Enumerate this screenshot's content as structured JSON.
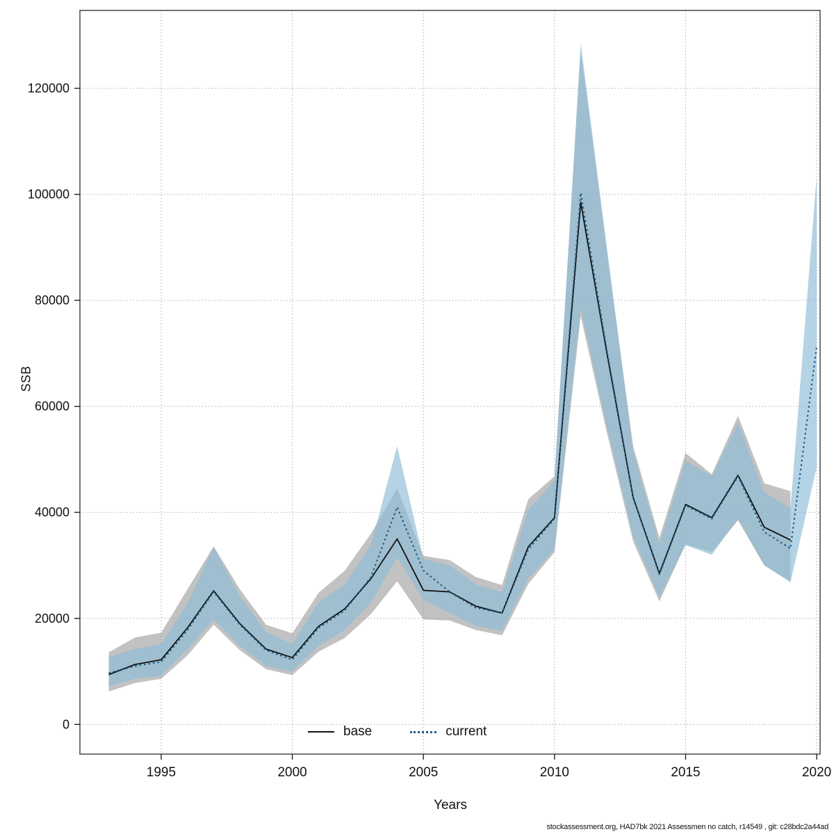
{
  "chart_data": {
    "type": "line",
    "title": "",
    "xlabel": "Years",
    "ylabel": "SSB",
    "xlim": [
      1991.9,
      2020.13
    ],
    "ylim": [
      -5600,
      134700
    ],
    "xticks": [
      1995,
      2000,
      2005,
      2010,
      2015,
      2020
    ],
    "yticks": [
      0,
      20000,
      40000,
      60000,
      80000,
      100000,
      120000
    ],
    "grid": true,
    "grid_color": "#a9a9c4",
    "legend_position": "bottom-center-inside",
    "legend": [
      "base",
      "current"
    ],
    "series": [
      {
        "name": "base",
        "color": "#111111",
        "line_style": "solid",
        "band_color": "#8f8f8f",
        "band_opacity": 0.55,
        "x": [
          1993,
          1994,
          1995,
          1996,
          1997,
          1998,
          1999,
          2000,
          2001,
          2002,
          2003,
          2004,
          2005,
          2006,
          2007,
          2008,
          2009,
          2010,
          2011,
          2012,
          2013,
          2014,
          2015,
          2016,
          2017,
          2018,
          2019
        ],
        "y": [
          9400,
          11300,
          12200,
          18200,
          25200,
          19000,
          14200,
          12600,
          18500,
          21800,
          27500,
          35000,
          25300,
          25000,
          22300,
          21000,
          33500,
          39000,
          98500,
          70000,
          42800,
          28500,
          41500,
          39000,
          47000,
          37200,
          34800
        ],
        "lower": [
          6200,
          7800,
          8600,
          13000,
          18800,
          14000,
          10400,
          9300,
          13700,
          16300,
          20800,
          27000,
          19800,
          19600,
          17800,
          16800,
          26500,
          32500,
          77000,
          55000,
          34500,
          23200,
          34000,
          32500,
          38500,
          30000,
          27000
        ],
        "upper": [
          13600,
          16400,
          17300,
          25500,
          33600,
          25500,
          18800,
          17200,
          24800,
          29000,
          36000,
          44500,
          31800,
          31000,
          27800,
          26300,
          42500,
          46800,
          127000,
          89000,
          52500,
          35200,
          51200,
          47200,
          58200,
          45500,
          44000
        ]
      },
      {
        "name": "current",
        "color": "#1d5c87",
        "line_style": "dotted",
        "band_color": "#8cbcd6",
        "band_opacity": 0.65,
        "x": [
          1993,
          1994,
          1995,
          1996,
          1997,
          1998,
          1999,
          2000,
          2001,
          2002,
          2003,
          2004,
          2005,
          2006,
          2007,
          2008,
          2009,
          2010,
          2011,
          2012,
          2013,
          2014,
          2015,
          2016,
          2017,
          2018,
          2019,
          2020
        ],
        "y": [
          9700,
          11000,
          11800,
          17800,
          25000,
          18800,
          14000,
          12200,
          18200,
          21500,
          27800,
          41000,
          29000,
          25000,
          22000,
          21000,
          33000,
          38800,
          100300,
          70500,
          42800,
          28300,
          41300,
          38800,
          46800,
          36300,
          33200,
          71300
        ],
        "lower": [
          7200,
          8600,
          9200,
          14200,
          19800,
          14800,
          11000,
          10000,
          14800,
          17800,
          23000,
          31500,
          23500,
          21000,
          18600,
          17600,
          27500,
          33000,
          78500,
          56000,
          35500,
          24000,
          33800,
          32000,
          38800,
          30000,
          26800,
          48500
        ],
        "upper": [
          12800,
          14200,
          15200,
          22800,
          33400,
          24200,
          17400,
          15200,
          23000,
          26400,
          33800,
          52500,
          31200,
          30000,
          26400,
          25000,
          40500,
          46000,
          128500,
          90000,
          51500,
          34000,
          49800,
          46800,
          56800,
          43800,
          40800,
          103500
        ]
      }
    ]
  },
  "footer": {
    "text": "stockassessment.org, HAD7bk 2021 Assessmen no catch, r14549 , git: c28bdc2a44ad"
  }
}
